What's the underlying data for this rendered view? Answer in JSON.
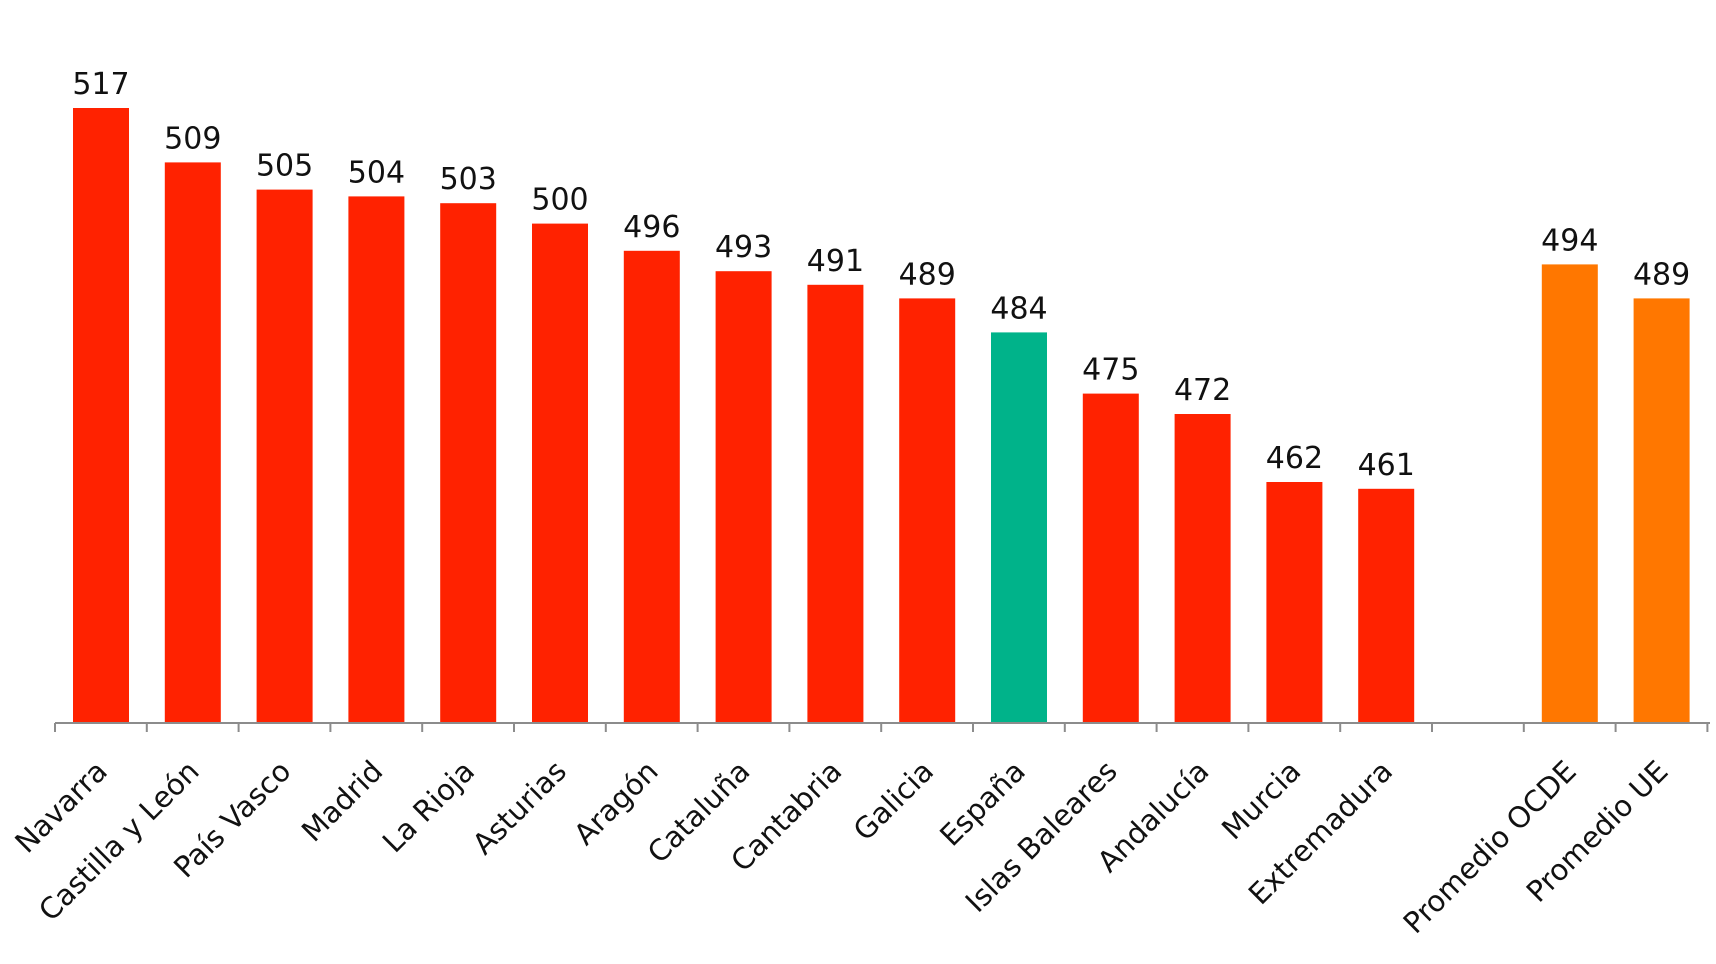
{
  "chart_data": {
    "type": "bar",
    "title": "",
    "xlabel": "",
    "ylabel": "",
    "ylim": [
      400,
      525
    ],
    "grid": false,
    "legend": "none",
    "categories": [
      "Navarra",
      "Castilla y León",
      "País Vasco",
      "Madrid",
      "La Rioja",
      "Asturias",
      "Aragón",
      "Cataluña",
      "Cantabria",
      "Galicia",
      "España",
      "Islas Baleares",
      "Andalucía",
      "Murcia",
      "Extremadura",
      "",
      "Promedio OCDE",
      "Promedio UE"
    ],
    "values": [
      517,
      509,
      505,
      504,
      503,
      500,
      496,
      493,
      491,
      489,
      484,
      475,
      472,
      462,
      461,
      null,
      494,
      489
    ],
    "value_labels": [
      "517",
      "509",
      "505",
      "504",
      "503",
      "500",
      "496",
      "493",
      "491",
      "489",
      "484",
      "475",
      "472",
      "462",
      "461",
      "",
      "494",
      "489"
    ],
    "bar_groups": [
      "region",
      "region",
      "region",
      "region",
      "region",
      "region",
      "region",
      "region",
      "region",
      "region",
      "national",
      "region",
      "region",
      "region",
      "region",
      "gap",
      "average",
      "average"
    ]
  },
  "colors": {
    "region": "#ff2200",
    "national": "#00b38a",
    "average": "#ff7700",
    "axis": "#8c8c8c"
  }
}
